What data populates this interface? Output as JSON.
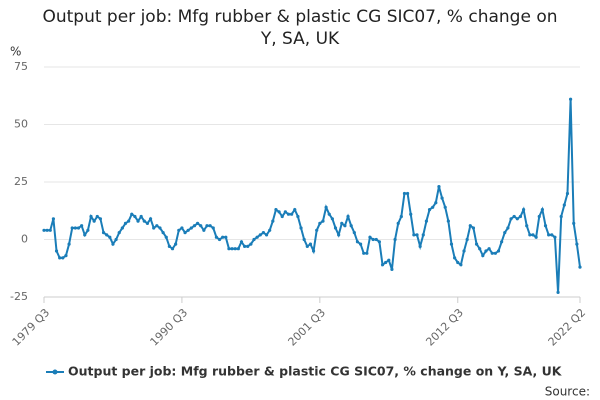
{
  "chart_data": {
    "type": "line",
    "title": "Output per job: Mfg rubber & plastic CG SIC07, % change on Y, SA, UK",
    "y_label": "%",
    "source": "Source:",
    "categories": [
      "1979 Q3",
      null,
      null,
      null,
      null,
      null,
      null,
      null,
      null,
      null,
      null,
      null,
      null,
      null,
      null,
      null,
      null,
      null,
      null,
      null,
      null,
      null,
      null,
      null,
      null,
      null,
      null,
      null,
      null,
      null,
      null,
      null,
      null,
      null,
      null,
      null,
      null,
      null,
      null,
      null,
      null,
      null,
      null,
      null,
      "1990 Q3",
      null,
      null,
      null,
      null,
      null,
      null,
      null,
      null,
      null,
      null,
      null,
      null,
      null,
      null,
      null,
      null,
      null,
      null,
      null,
      null,
      null,
      null,
      null,
      null,
      null,
      null,
      null,
      null,
      null,
      null,
      null,
      null,
      null,
      null,
      null,
      null,
      null,
      null,
      null,
      null,
      null,
      null,
      null,
      "2001 Q3",
      null,
      null,
      null,
      null,
      null,
      null,
      null,
      null,
      null,
      null,
      null,
      null,
      null,
      null,
      null,
      null,
      null,
      null,
      null,
      null,
      null,
      null,
      null,
      null,
      null,
      null,
      null,
      null,
      null,
      null,
      null,
      null,
      null,
      null,
      null,
      null,
      null,
      null,
      null,
      null,
      null,
      null,
      null,
      "2012 Q3",
      null,
      null,
      null,
      null,
      null,
      null,
      null,
      null,
      null,
      null,
      null,
      null,
      null,
      null,
      null,
      null,
      null,
      null,
      null,
      null,
      null,
      null,
      null,
      null,
      null,
      null,
      null,
      null,
      null,
      null,
      null,
      null,
      null,
      null,
      null,
      null,
      null,
      null,
      "2022 Q2"
    ],
    "series": [
      {
        "name": "Output per job: Mfg rubber & plastic CG SIC07, % change on Y, SA, UK",
        "color": "#1a7db8",
        "values": [
          4,
          4,
          4,
          9,
          -5,
          -8,
          -8,
          -7,
          -2,
          5,
          5,
          5,
          6,
          2,
          4,
          10,
          8,
          10,
          9,
          3,
          2,
          1,
          -2,
          0,
          3,
          5,
          7,
          8,
          11,
          10,
          8,
          10,
          8,
          7,
          9,
          5,
          6,
          5,
          3,
          1,
          -3,
          -4,
          -2,
          4,
          5,
          3,
          4,
          5,
          6,
          7,
          6,
          4,
          6,
          6,
          5,
          1,
          0,
          1,
          1,
          -4,
          -4,
          -4,
          -4,
          -1,
          -3,
          -3,
          -2,
          0,
          1,
          2,
          3,
          2,
          4,
          8,
          13,
          12,
          10,
          12,
          11,
          11,
          13,
          10,
          5,
          0,
          -3,
          -2,
          -5,
          4,
          7,
          8,
          14,
          11,
          9,
          5,
          2,
          7,
          6,
          10,
          6,
          3,
          -1,
          -2,
          -6,
          -6,
          1,
          0,
          0,
          -1,
          -11,
          -10,
          -9,
          -13,
          0,
          7,
          10,
          20,
          20,
          11,
          2,
          2,
          -3,
          2,
          8,
          13,
          14,
          16,
          23,
          18,
          14,
          8,
          -2,
          -8,
          -10,
          -11,
          -5,
          0,
          6,
          5,
          -2,
          -4,
          -7,
          -5,
          -4,
          -6,
          -6,
          -5,
          -1,
          3,
          5,
          9,
          10,
          9,
          10,
          13,
          6,
          2,
          2,
          1,
          10,
          13,
          6,
          2,
          2,
          1,
          -23,
          10,
          15,
          20,
          61,
          7,
          -2,
          -12
        ]
      }
    ],
    "ylim": [
      -25,
      75
    ],
    "yticks": [
      -25,
      0,
      25,
      50,
      75
    ],
    "grid": true
  }
}
